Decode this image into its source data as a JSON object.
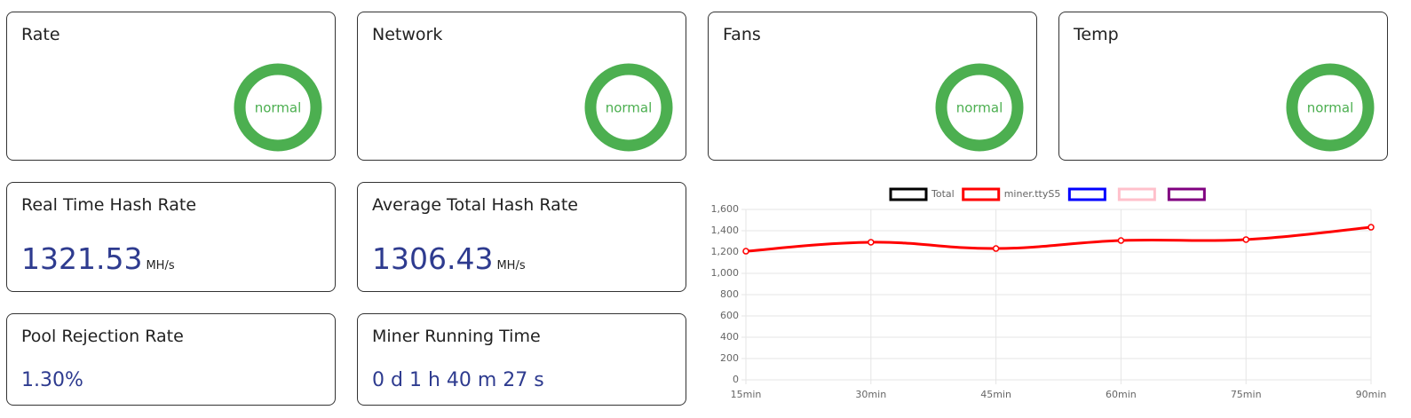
{
  "status_cards": [
    {
      "title": "Rate",
      "status": "normal"
    },
    {
      "title": "Network",
      "status": "normal"
    },
    {
      "title": "Fans",
      "status": "normal"
    },
    {
      "title": "Temp",
      "status": "normal"
    }
  ],
  "stat_cards": [
    {
      "title": "Real Time Hash Rate",
      "value": "1321.53",
      "unit": "MH/s"
    },
    {
      "title": "Average Total Hash Rate",
      "value": "1306.43",
      "unit": "MH/s"
    },
    {
      "title": "Pool Rejection Rate",
      "value": "1.30%"
    },
    {
      "title": "Miner Running Time",
      "value": "0 d 1 h 40 m 27 s"
    }
  ],
  "chart_data": {
    "type": "line",
    "categories": [
      "15min",
      "30min",
      "45min",
      "60min",
      "75min",
      "90min"
    ],
    "series": [
      {
        "name": "Total",
        "color": "#000000",
        "values": [
          null,
          null,
          null,
          null,
          null,
          null
        ]
      },
      {
        "name": "miner.ttyS5",
        "color": "#ff0000",
        "values": [
          1208,
          1292,
          1233,
          1308,
          1317,
          1433
        ]
      },
      {
        "name": null,
        "color": "#0000ff",
        "values": [
          null,
          null,
          null,
          null,
          null,
          null
        ]
      },
      {
        "name": null,
        "color": "#ffc0cb",
        "values": [
          null,
          null,
          null,
          null,
          null,
          null
        ]
      },
      {
        "name": null,
        "color": "#800080",
        "values": [
          null,
          null,
          null,
          null,
          null,
          null
        ]
      }
    ],
    "ylim": [
      0,
      1600
    ],
    "yticks": [
      0,
      200,
      400,
      600,
      800,
      {
        "value": 1000,
        "label": "1,000"
      },
      {
        "value": 1200,
        "label": "1,200"
      },
      {
        "value": 1400,
        "label": "1,400"
      },
      {
        "value": 1600,
        "label": "1,600"
      }
    ],
    "grid": true
  }
}
